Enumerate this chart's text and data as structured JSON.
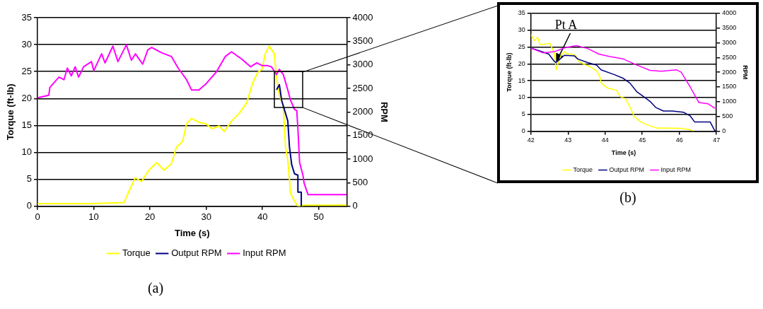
{
  "chart_data": [
    {
      "type": "line",
      "xlabel": "Time (s)",
      "ylabel": "Torque (ft-lb)",
      "y2label": "RPM",
      "xlim": [
        0,
        55
      ],
      "xticks": [
        0,
        10,
        20,
        30,
        40,
        50
      ],
      "ylim": [
        0,
        35
      ],
      "yticks": [
        0,
        5,
        10,
        15,
        20,
        25,
        30,
        35
      ],
      "y2lim": [
        0,
        4000
      ],
      "y2ticks": [
        0,
        500,
        1000,
        1500,
        2000,
        2500,
        3000,
        3500,
        4000
      ],
      "grid": "y",
      "legend": "bottom",
      "marker": "none",
      "line_style": "solid",
      "annotations": [
        "(a)"
      ],
      "series": [
        {
          "name": "Torque",
          "color": "#ffff00",
          "x": [
            0,
            5.1,
            9.6,
            15.4,
            16.3,
            17.4,
            18.5,
            19.8,
            21.2,
            22.5,
            23.8,
            24.7,
            25.8,
            26.5,
            27.4,
            28.7,
            30,
            31,
            32.3,
            33.2,
            34.5,
            35.9,
            37.2,
            38.3,
            39.2,
            39.9,
            40.5,
            41.2,
            42.1,
            42.5,
            43,
            43.7,
            44.1,
            44.5,
            45,
            45.7,
            46.3,
            47.4,
            55
          ],
          "values": [
            0.5,
            0.5,
            0.5,
            0.7,
            2.9,
            5.3,
            4.6,
            6.7,
            8.1,
            6.7,
            7.9,
            11,
            12,
            15.3,
            16.3,
            15.6,
            15.3,
            14.4,
            14.9,
            13.9,
            15.8,
            17.3,
            19.2,
            23,
            24.9,
            25.4,
            28.3,
            29.7,
            28.3,
            24,
            20.6,
            18.7,
            11,
            8.6,
            2.4,
            1,
            0,
            0.2,
            0.2
          ]
        },
        {
          "name": "Output RPM",
          "color": "#000080",
          "axis": "y2",
          "x": [
            42.5,
            43,
            43.4,
            44.1,
            44.5,
            44.8,
            45.2,
            45.7,
            46.3,
            46.3,
            46.9,
            46.9
          ],
          "values": [
            2470,
            2580,
            2250,
            1970,
            1810,
            1260,
            880,
            690,
            660,
            300,
            300,
            0
          ]
        },
        {
          "name": "Input RPM",
          "color": "#ff00ff",
          "axis": "y2",
          "x": [
            0,
            2,
            2.2,
            3.8,
            4.7,
            5.3,
            6,
            6.7,
            7.3,
            8.2,
            9.6,
            10,
            11.4,
            12,
            13.4,
            14.3,
            15.8,
            16.7,
            17.4,
            18.7,
            19.6,
            20.3,
            22,
            23.8,
            25,
            26.5,
            27.4,
            28.7,
            30,
            31.8,
            33.4,
            34.5,
            36.3,
            37.9,
            39,
            39.9,
            40.8,
            41.6,
            42.5,
            43,
            43.7,
            44.5,
            45,
            45.7,
            46.1,
            46.3,
            46.6,
            47.2,
            47.4,
            48.1,
            55
          ],
          "values": [
            2301,
            2356,
            2520,
            2740,
            2685,
            2932,
            2767,
            2959,
            2740,
            2959,
            3068,
            2877,
            3233,
            3041,
            3397,
            3068,
            3425,
            3096,
            3233,
            3014,
            3315,
            3370,
            3260,
            3178,
            2932,
            2685,
            2466,
            2466,
            2603,
            2849,
            3178,
            3277,
            3123,
            2959,
            3041,
            2986,
            2986,
            2959,
            2795,
            2904,
            2795,
            2466,
            2247,
            2055,
            2027,
            1644,
            932,
            658,
            493,
            247,
            247
          ]
        }
      ]
    },
    {
      "type": "line",
      "xlabel": "Time (s)",
      "ylabel": "Torque (ft-lb)",
      "y2label": "RPM",
      "xlim": [
        42,
        47
      ],
      "xticks": [
        42,
        43,
        44,
        45,
        46,
        47
      ],
      "ylim": [
        0,
        35
      ],
      "yticks": [
        0,
        5,
        10,
        15,
        20,
        25,
        30,
        35
      ],
      "y2lim": [
        0,
        4000
      ],
      "y2ticks": [
        0,
        500,
        1000,
        1500,
        2000,
        2500,
        3000,
        3500,
        4000
      ],
      "grid": "y",
      "legend": "bottom",
      "marker": "none",
      "line_style": "solid",
      "annotations": [
        "(b)",
        {
          "text": "Pt A",
          "x": 42.68,
          "y": 20.5
        }
      ],
      "series": [
        {
          "name": "Torque",
          "color": "#ffff00",
          "x": [
            42,
            42.09,
            42.18,
            42.24,
            42.36,
            42.51,
            42.57,
            42.63,
            42.68,
            42.72,
            42.81,
            42.9,
            42.99,
            43.11,
            43.2,
            43.29,
            43.47,
            43.62,
            43.77,
            43.86,
            43.89,
            44.07,
            44.31,
            44.4,
            44.55,
            44.67,
            44.79,
            44.97,
            45.15,
            45.39,
            46.05,
            46.29,
            46.38
          ],
          "values": [
            28.7,
            26.9,
            27.9,
            25.8,
            25.8,
            26.1,
            24.7,
            23.3,
            18.2,
            19.7,
            22.5,
            23.6,
            22.9,
            22.9,
            22.5,
            20.7,
            19.7,
            19,
            17.9,
            16.1,
            14.3,
            12.8,
            12.1,
            10.3,
            9.6,
            7.1,
            4.2,
            2.7,
            1.8,
            0.9,
            0.8,
            0.4,
            0
          ]
        },
        {
          "name": "Output RPM",
          "color": "#000080",
          "axis": "y2",
          "x": [
            42,
            42.21,
            42.48,
            42.63,
            42.68,
            42.75,
            42.9,
            43.17,
            43.26,
            43.53,
            43.77,
            43.89,
            44.25,
            44.49,
            44.67,
            44.85,
            45.03,
            45.21,
            45.36,
            45.57,
            45.81,
            46.11,
            46.29,
            46.41,
            46.83,
            46.95,
            47
          ],
          "values": [
            2823,
            2741,
            2617,
            2370,
            2329,
            2412,
            2576,
            2560,
            2453,
            2329,
            2247,
            2082,
            1918,
            1794,
            1630,
            1342,
            1177,
            1012,
            807,
            683,
            683,
            642,
            519,
            313,
            313,
            25,
            0
          ]
        },
        {
          "name": "Input RPM",
          "color": "#ff00ff",
          "axis": "y2",
          "x": [
            42,
            42.33,
            42.63,
            42.93,
            43.23,
            43.53,
            43.83,
            44.13,
            44.49,
            44.85,
            45.21,
            45.51,
            45.93,
            46.05,
            46.29,
            46.47,
            46.53,
            46.77,
            46.95,
            47
          ],
          "values": [
            2823,
            2658,
            2700,
            2840,
            2905,
            2807,
            2617,
            2535,
            2453,
            2247,
            2066,
            2033,
            2082,
            2000,
            1506,
            1095,
            971,
            930,
            782,
            782
          ]
        }
      ]
    }
  ]
}
